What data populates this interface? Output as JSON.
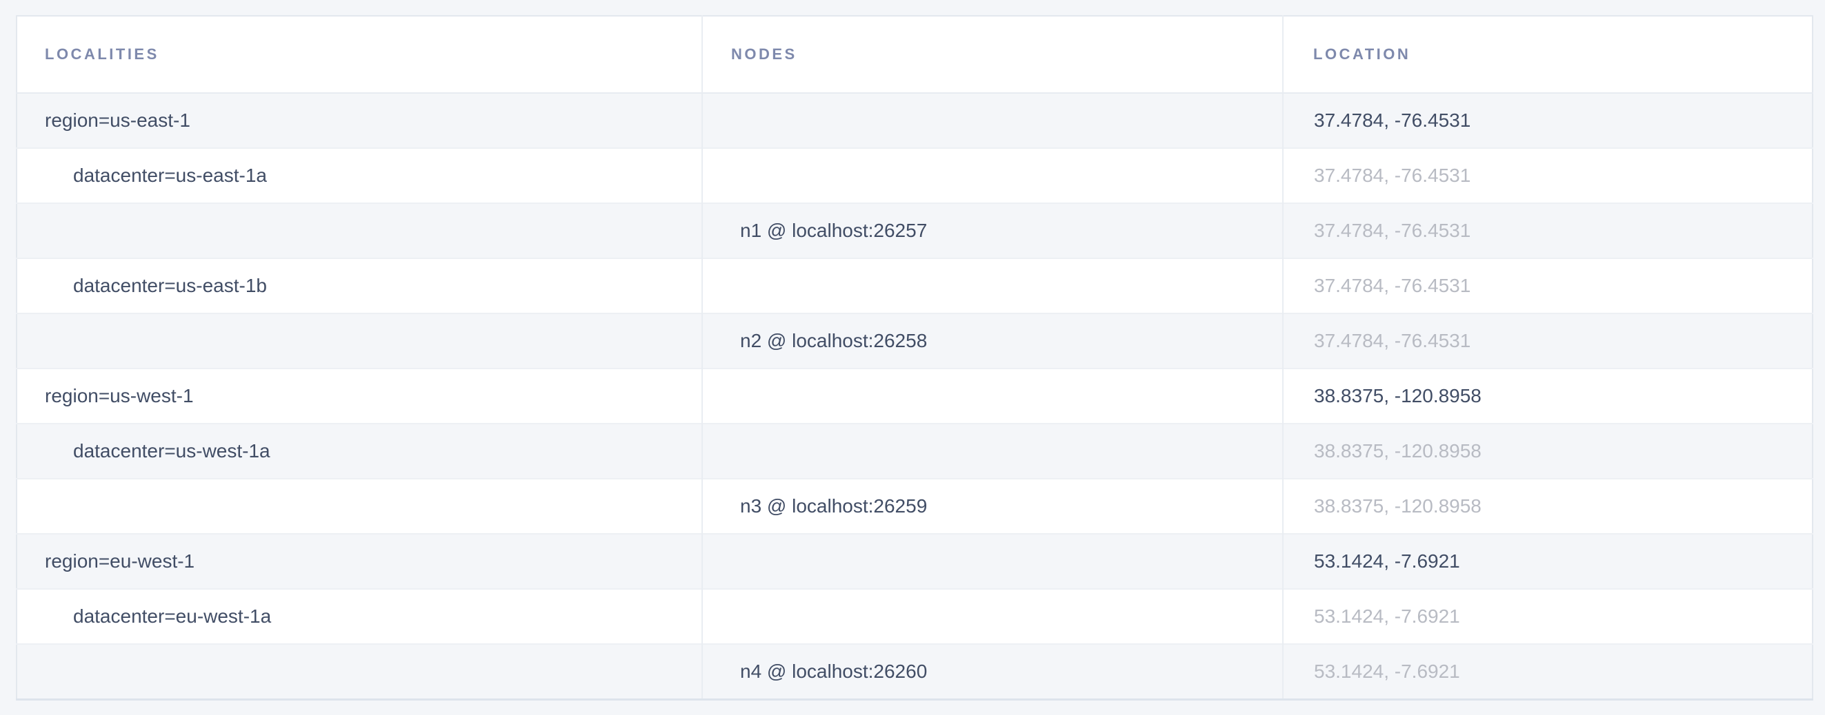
{
  "table": {
    "columns": [
      {
        "id": "localities",
        "label": "LOCALITIES"
      },
      {
        "id": "nodes",
        "label": "NODES"
      },
      {
        "id": "location",
        "label": "LOCATION"
      }
    ],
    "rows": [
      {
        "locality": "region=us-east-1",
        "indent": 0,
        "node": "",
        "location": "37.4784, -76.4531",
        "location_muted": false
      },
      {
        "locality": "datacenter=us-east-1a",
        "indent": 1,
        "node": "",
        "location": "37.4784, -76.4531",
        "location_muted": true
      },
      {
        "locality": "",
        "indent": 0,
        "node": "n1 @ localhost:26257",
        "location": "37.4784, -76.4531",
        "location_muted": true
      },
      {
        "locality": "datacenter=us-east-1b",
        "indent": 1,
        "node": "",
        "location": "37.4784, -76.4531",
        "location_muted": true
      },
      {
        "locality": "",
        "indent": 0,
        "node": "n2 @ localhost:26258",
        "location": "37.4784, -76.4531",
        "location_muted": true
      },
      {
        "locality": "region=us-west-1",
        "indent": 0,
        "node": "",
        "location": "38.8375, -120.8958",
        "location_muted": false
      },
      {
        "locality": "datacenter=us-west-1a",
        "indent": 1,
        "node": "",
        "location": "38.8375, -120.8958",
        "location_muted": true
      },
      {
        "locality": "",
        "indent": 0,
        "node": "n3 @ localhost:26259",
        "location": "38.8375, -120.8958",
        "location_muted": true
      },
      {
        "locality": "region=eu-west-1",
        "indent": 0,
        "node": "",
        "location": "53.1424, -7.6921",
        "location_muted": false
      },
      {
        "locality": "datacenter=eu-west-1a",
        "indent": 1,
        "node": "",
        "location": "53.1424, -7.6921",
        "location_muted": true
      },
      {
        "locality": "",
        "indent": 0,
        "node": "n4 @ localhost:26260",
        "location": "53.1424, -7.6921",
        "location_muted": true
      }
    ]
  },
  "colors": {
    "page_background": "#f4f6f9",
    "row_stripe": "#f4f6f9",
    "row_white": "#ffffff",
    "table_border": "#e3e8ee",
    "column_separator": "#e9edf2",
    "header_text": "#7e89ac",
    "cell_text": "#414d65",
    "muted_text": "#b8bbc3"
  }
}
